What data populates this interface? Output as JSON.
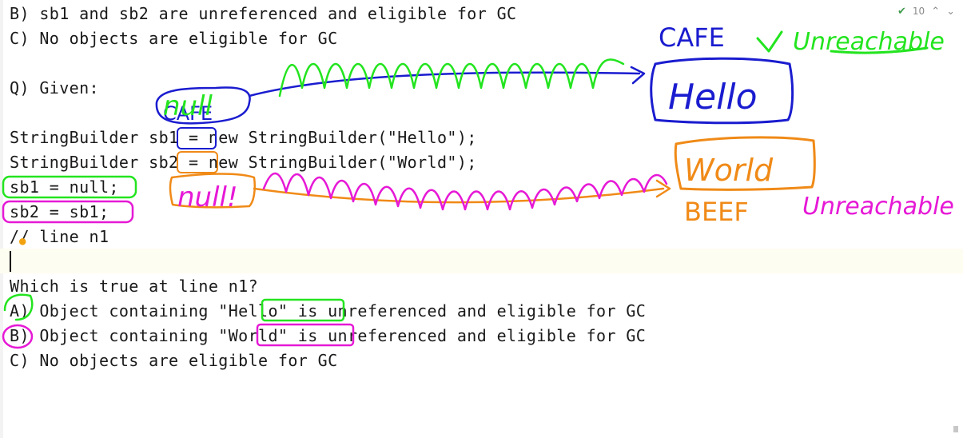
{
  "inspection": {
    "count": "10",
    "check_icon": "check-icon",
    "up_icon": "chevron-up-icon",
    "down_icon": "chevron-down-icon"
  },
  "code": {
    "lines": [
      "B) sb1 and sb2 are unreferenced and eligible for GC",
      "C) No objects are eligible for GC",
      "",
      "Q) Given:",
      "",
      "StringBuilder sb1 = new StringBuilder(\"Hello\");",
      "StringBuilder sb2 = new StringBuilder(\"World\");",
      "sb1 = null;",
      "sb2 = sb1;",
      "// line n1",
      "",
      "Which is true at line n1?",
      "A) Object containing \"Hello\" is unreferenced and eligible for GC",
      "B) Object containing \"World\" is unreferenced and eligible for GC",
      "C) No objects are eligible for GC"
    ]
  },
  "annotations": {
    "cafe_label": "CAFE",
    "unreachable_1": "Unreachable",
    "hello_box": "Hello",
    "null_1": "null",
    "cafe_small": "CAFE",
    "world_box": "World",
    "beef_label": "BEEF",
    "unreachable_2": "Unreachable",
    "null_2": "null!",
    "colors": {
      "green": "#23e41f",
      "blue": "#1a1ccf",
      "orange": "#f08a17",
      "magenta": "#e619d6"
    }
  }
}
